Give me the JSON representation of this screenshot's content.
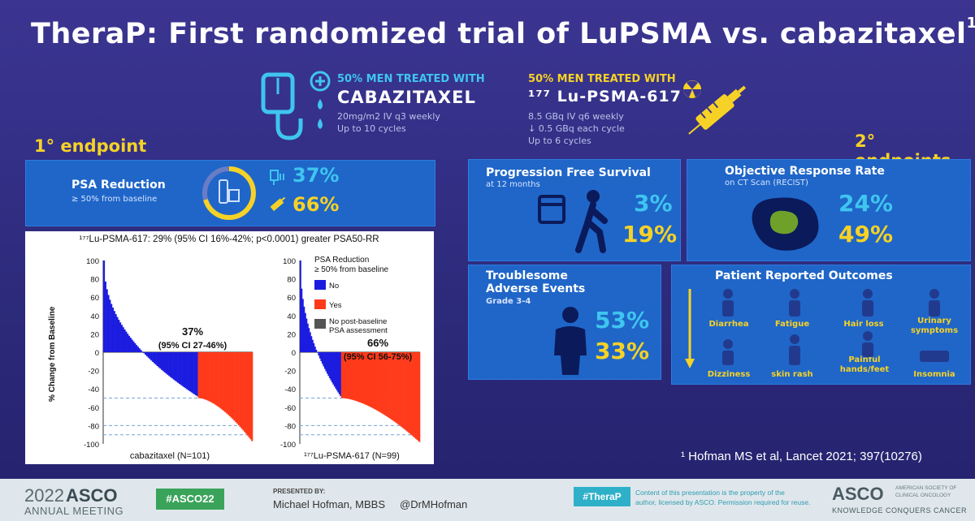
{
  "title": "TheraP: First randomized trial of LuPSMA vs. cabazitaxel",
  "title_sup": "1",
  "arm_cabazitaxel": {
    "tag": "50% MEN TREATED WITH",
    "drug": "CABAZITAXEL",
    "line1": "20mg/m2 IV q3 weekly",
    "line2": "Up to 10 cycles"
  },
  "arm_lupsma": {
    "tag": "50% MEN TREATED WITH",
    "drug": "¹⁷⁷ Lu-PSMA-617",
    "line1": "8.5 GBq IV q6 weekly",
    "line2": "↓ 0.5 GBq each cycle",
    "line3": "Up to 6 cycles"
  },
  "primary_endpoint": "1° endpoint",
  "secondary_endpoints": "2° endpoints",
  "psa_panel": {
    "title": "PSA Reduction",
    "sub": "≥ 50% from baseline",
    "cabazitaxel": "37%",
    "lupsma": "66%"
  },
  "pfs": {
    "title": "Progression Free Survival",
    "sub": "at 12 months",
    "cabazitaxel": "3%",
    "lupsma": "19%"
  },
  "orr": {
    "title": "Objective Response Rate",
    "sub": "on CT Scan (RECIST)",
    "cabazitaxel": "24%",
    "lupsma": "49%"
  },
  "ae": {
    "title1": "Troublesome",
    "title2": "Adverse Events",
    "sub": "Grade 3-4",
    "cabazitaxel": "53%",
    "lupsma": "33%"
  },
  "pro": {
    "title": "Patient Reported Outcomes",
    "items": [
      "Diarrhea",
      "Fatigue",
      "Hair loss",
      "Urinary symptoms",
      "Dizziness",
      "skin rash",
      "Painful hands/feet",
      "Insomnia"
    ]
  },
  "reference": "¹ Hofman MS et al, Lancet 2021; 397(10276)",
  "chart_data": {
    "type": "bar",
    "title": "¹⁷⁷Lu-PSMA-617: 29% (95% CI 16%-42%; p<0.0001) greater PSA50-RR",
    "ylabel": "% Change from Baseline",
    "ylim": [
      -100,
      100
    ],
    "yticks": [
      "100",
      "80",
      "60",
      "40",
      "20",
      "0",
      "-20",
      "-40",
      "-60",
      "-80",
      "-100"
    ],
    "legend_title": "PSA Reduction ≥ 50% from baseline",
    "legend": [
      {
        "label": "No",
        "color": "#1c1ce0"
      },
      {
        "label": "Yes",
        "color": "#ff3a1a"
      },
      {
        "label": "No post-baseline PSA assessment",
        "color": "#555555"
      }
    ],
    "series": [
      {
        "name": "cabazitaxel (N=101)",
        "annotation": "37%",
        "annotation_ci": "(95% CI 27-46%)",
        "n": 101,
        "responders": 37,
        "max": 100,
        "min": -97
      },
      {
        "name": "¹⁷⁷Lu-PSMA-617 (N=99)",
        "annotation": "66%",
        "annotation_ci": "(95% CI 56-75%)",
        "n": 99,
        "responders": 65,
        "max": 100,
        "min": -98
      }
    ],
    "reference_lines": [
      -50,
      -80,
      -90
    ]
  },
  "footer": {
    "year": "2022",
    "asco": "ASCO",
    "meeting": "ANNUAL MEETING",
    "hashtag": "#ASCO22",
    "presented_by": "PRESENTED BY:",
    "presenter": "Michael Hofman, MBBS",
    "handle": "@DrMHofman",
    "therap_tag": "#TheraP",
    "disclaimer1": "Content of this presentation is the property of the",
    "disclaimer2": "author, licensed by ASCO. Permission required for reuse.",
    "asco_logo": "ASCO",
    "asco_full1": "AMERICAN SOCIETY OF",
    "asco_full2": "CLINICAL ONCOLOGY",
    "tagline": "KNOWLEDGE CONQUERS CANCER"
  }
}
